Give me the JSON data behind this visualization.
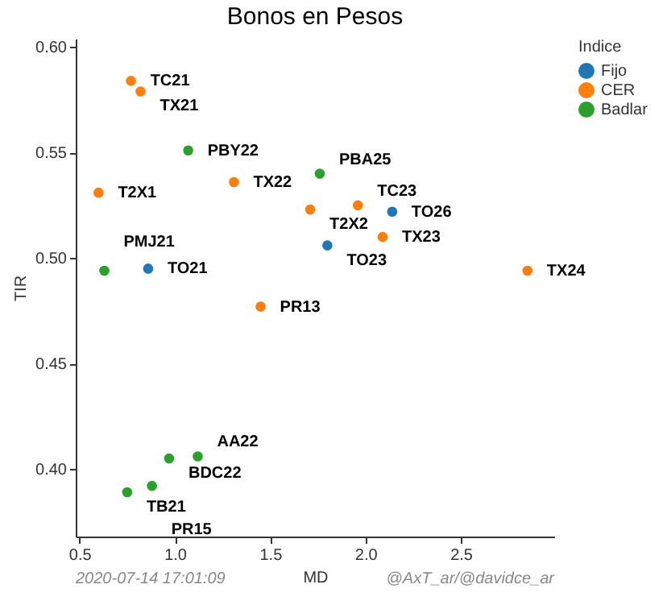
{
  "chart_data": {
    "type": "scatter",
    "title": "Bonos en Pesos",
    "xlabel": "MD",
    "ylabel": "TIR",
    "legend_title": "Indice",
    "legend": "right",
    "grid": false,
    "marker": "circle",
    "xlim": [
      0.48,
      2.99
    ],
    "xticks": [
      0.5,
      {
        "value": 1.0,
        "label": "1.0"
      },
      1.5,
      {
        "value": 2.0,
        "label": "2.0"
      },
      2.5
    ],
    "ylim": [
      0.368,
      0.604
    ],
    "yticks": [
      {
        "value": 0.4,
        "label": "0.40"
      },
      {
        "value": 0.45,
        "label": "0.45"
      },
      {
        "value": 0.5,
        "label": "0.50"
      },
      {
        "value": 0.55,
        "label": "0.55"
      },
      {
        "value": 0.6,
        "label": "0.60"
      }
    ],
    "series": [
      {
        "name": "Fijo",
        "color": "#1f77b4",
        "x": [
          2.14,
          1.8,
          0.86
        ],
        "values": [
          0.522,
          0.506,
          0.495
        ]
      },
      {
        "name": "CER",
        "color": "#ff7f0e",
        "x": [
          0.77,
          0.82,
          1.31,
          0.6,
          1.71,
          1.96,
          2.09,
          2.85,
          1.45
        ],
        "values": [
          0.584,
          0.579,
          0.536,
          0.531,
          0.523,
          0.525,
          0.51,
          0.494,
          0.477
        ]
      },
      {
        "name": "Badlar",
        "color": "#2ca02c",
        "x": [
          1.07,
          1.76,
          0.63,
          0.97,
          1.12,
          0.75,
          0.88
        ],
        "values": [
          0.551,
          0.54,
          0.494,
          0.405,
          0.406,
          0.389,
          0.392
        ]
      }
    ],
    "annotations": [
      {
        "text": "TO26",
        "x": 2.14,
        "y": 0.522
      },
      {
        "text": "TO23",
        "x": 1.8,
        "y": 0.506
      },
      {
        "text": "TO21",
        "x": 0.86,
        "y": 0.495
      },
      {
        "text": "TC21",
        "x": 0.77,
        "y": 0.584
      },
      {
        "text": "TX21",
        "x": 0.82,
        "y": 0.579
      },
      {
        "text": "TX22",
        "x": 1.31,
        "y": 0.536
      },
      {
        "text": "T2X1",
        "x": 0.6,
        "y": 0.531
      },
      {
        "text": "T2X2",
        "x": 1.71,
        "y": 0.523
      },
      {
        "text": "TC23",
        "x": 1.96,
        "y": 0.525
      },
      {
        "text": "TX23",
        "x": 2.09,
        "y": 0.51
      },
      {
        "text": "TX24",
        "x": 2.85,
        "y": 0.494
      },
      {
        "text": "PR13",
        "x": 1.45,
        "y": 0.477
      },
      {
        "text": "PBY22",
        "x": 1.07,
        "y": 0.551
      },
      {
        "text": "PBA25",
        "x": 1.76,
        "y": 0.54
      },
      {
        "text": "PMJ21",
        "x": 0.63,
        "y": 0.494
      },
      {
        "text": "BDC22",
        "x": 0.97,
        "y": 0.405
      },
      {
        "text": "AA22",
        "x": 1.12,
        "y": 0.406
      },
      {
        "text": "TB21",
        "x": 0.75,
        "y": 0.389
      },
      {
        "text": "PR15",
        "x": 0.88,
        "y": 0.392
      },
      "2020-07-14 17:01:09",
      "@AxT_ar/@davidce_ar"
    ]
  }
}
